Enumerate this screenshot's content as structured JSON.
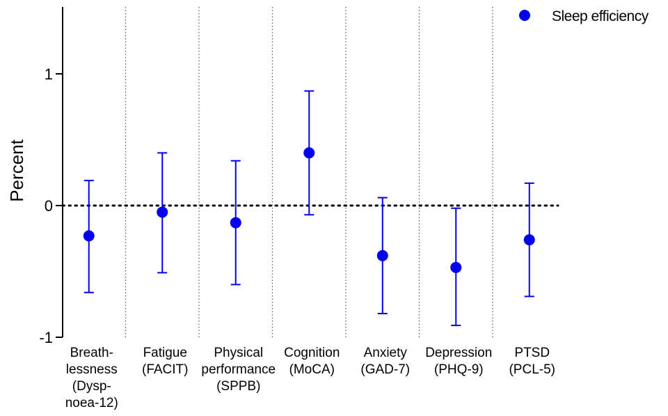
{
  "chart_data": {
    "type": "scatter",
    "ylabel": "Percent",
    "ylim": [
      -1,
      1.5
    ],
    "yticks": [
      -1,
      0,
      1
    ],
    "reference_line": 0,
    "categories": [
      [
        "Breath-",
        "lessness",
        "(Dysp-",
        "noea-12)"
      ],
      [
        "Fatigue",
        "(FACIT)"
      ],
      [
        "Physical",
        "performance",
        "(SPPB)"
      ],
      [
        "Cognition",
        "(MoCA)"
      ],
      [
        "Anxiety",
        "(GAD-7)"
      ],
      [
        "Depression",
        "(PHQ-9)"
      ],
      [
        "PTSD",
        "(PCL-5)"
      ]
    ],
    "series": [
      {
        "name": "Sleep efficiency",
        "color": "#0000ee",
        "values": [
          -0.23,
          -0.05,
          -0.13,
          0.4,
          -0.38,
          -0.47,
          -0.26
        ],
        "lower": [
          -0.66,
          -0.51,
          -0.6,
          -0.07,
          -0.82,
          -0.91,
          -0.69
        ],
        "upper": [
          0.19,
          0.4,
          0.34,
          0.87,
          0.06,
          -0.02,
          0.17
        ]
      }
    ],
    "legend": "top-right"
  }
}
